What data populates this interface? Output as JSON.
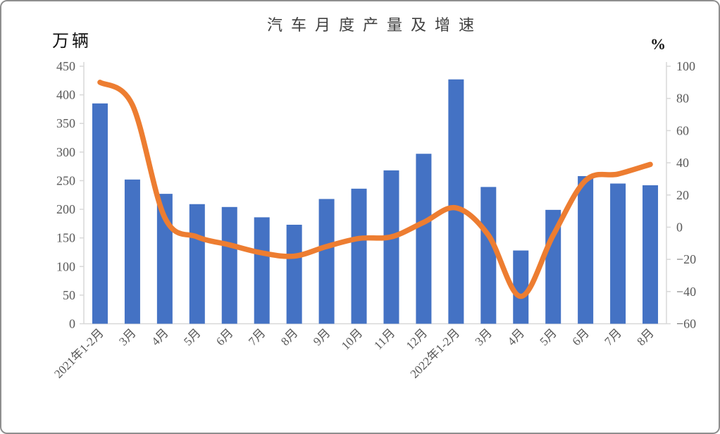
{
  "window": {
    "background": "#ffffff",
    "border_color": "#8f8f8f"
  },
  "chart_data": {
    "type": "combo-bar-line",
    "title": "汽车月度产量及增速",
    "categories": [
      "2021年1-2月",
      "3月",
      "4月",
      "5月",
      "6月",
      "7月",
      "8月",
      "9月",
      "10月",
      "11月",
      "12月",
      "2022年1-2月",
      "3月",
      "4月",
      "5月",
      "6月",
      "7月",
      "8月"
    ],
    "series": [
      {
        "name": "月度产量",
        "type": "bar",
        "axis": "left",
        "unit": "万辆",
        "color": "#4472C4",
        "values": [
          385,
          252,
          227,
          209,
          204,
          186,
          173,
          218,
          236,
          268,
          297,
          427,
          239,
          128,
          199,
          258,
          245,
          242
        ]
      },
      {
        "name": "增速",
        "type": "line",
        "axis": "right",
        "unit": "%",
        "color": "#ED7D31",
        "values": [
          90,
          76,
          6,
          -6,
          -11,
          -16,
          -18,
          -12,
          -7,
          -6,
          3,
          12,
          -5,
          -43,
          -5,
          29,
          33,
          39
        ]
      }
    ],
    "left_axis": {
      "unit": "万辆",
      "min": 0,
      "max": 450,
      "step": 50,
      "tick_values": [
        0,
        50,
        100,
        150,
        200,
        250,
        300,
        350,
        400,
        450
      ],
      "tick_labels": [
        "0",
        "50",
        "100",
        "150",
        "200",
        "250",
        "300",
        "350",
        "400",
        "450"
      ]
    },
    "right_axis": {
      "unit": "%",
      "min": -60,
      "max": 100,
      "step": 20,
      "tick_values": [
        -60,
        -40,
        -20,
        0,
        20,
        40,
        60,
        80,
        100
      ],
      "tick_labels": [
        "−60",
        "−40",
        "−20",
        "0",
        "20",
        "40",
        "60",
        "80",
        "100"
      ]
    },
    "grid": "none",
    "legend": "none",
    "axis_color": "#D8D8D8",
    "tick_text_color": "#595959"
  }
}
